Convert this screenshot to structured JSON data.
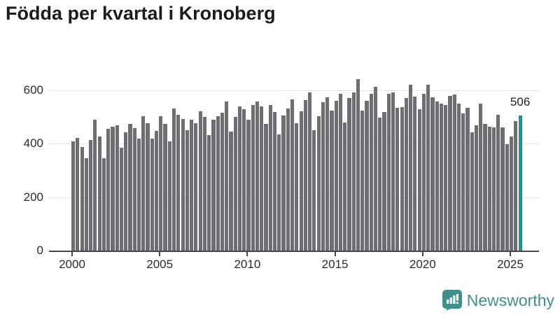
{
  "title": "Födda per kvartal i Kronoberg",
  "chart_data": {
    "type": "bar",
    "title": "Födda per kvartal i Kronoberg",
    "xlabel": "",
    "ylabel": "",
    "grid": true,
    "ylim": [
      0,
      650
    ],
    "yticks": [
      0,
      200,
      400,
      600
    ],
    "xticks": [
      "2000",
      "2005",
      "2010",
      "2015",
      "2020",
      "2025"
    ],
    "bar_color": "#6d6d72",
    "highlight_color": "#0d9b9b",
    "highlight_index": 102,
    "highlight_label": "506",
    "categories": [
      "2000 Q1",
      "2000 Q2",
      "2000 Q3",
      "2000 Q4",
      "2001 Q1",
      "2001 Q2",
      "2001 Q3",
      "2001 Q4",
      "2002 Q1",
      "2002 Q2",
      "2002 Q3",
      "2002 Q4",
      "2003 Q1",
      "2003 Q2",
      "2003 Q3",
      "2003 Q4",
      "2004 Q1",
      "2004 Q2",
      "2004 Q3",
      "2004 Q4",
      "2005 Q1",
      "2005 Q2",
      "2005 Q3",
      "2005 Q4",
      "2006 Q1",
      "2006 Q2",
      "2006 Q3",
      "2006 Q4",
      "2007 Q1",
      "2007 Q2",
      "2007 Q3",
      "2007 Q4",
      "2008 Q1",
      "2008 Q2",
      "2008 Q3",
      "2008 Q4",
      "2009 Q1",
      "2009 Q2",
      "2009 Q3",
      "2009 Q4",
      "2010 Q1",
      "2010 Q2",
      "2010 Q3",
      "2010 Q4",
      "2011 Q1",
      "2011 Q2",
      "2011 Q3",
      "2011 Q4",
      "2012 Q1",
      "2012 Q2",
      "2012 Q3",
      "2012 Q4",
      "2013 Q1",
      "2013 Q2",
      "2013 Q3",
      "2013 Q4",
      "2014 Q1",
      "2014 Q2",
      "2014 Q3",
      "2014 Q4",
      "2015 Q1",
      "2015 Q2",
      "2015 Q3",
      "2015 Q4",
      "2016 Q1",
      "2016 Q2",
      "2016 Q3",
      "2016 Q4",
      "2017 Q1",
      "2017 Q2",
      "2017 Q3",
      "2017 Q4",
      "2018 Q1",
      "2018 Q2",
      "2018 Q3",
      "2018 Q4",
      "2019 Q1",
      "2019 Q2",
      "2019 Q3",
      "2019 Q4",
      "2020 Q1",
      "2020 Q2",
      "2020 Q3",
      "2020 Q4",
      "2021 Q1",
      "2021 Q2",
      "2021 Q3",
      "2021 Q4",
      "2022 Q1",
      "2022 Q2",
      "2022 Q3",
      "2022 Q4",
      "2023 Q1",
      "2023 Q2",
      "2023 Q3",
      "2023 Q4",
      "2024 Q1",
      "2024 Q2",
      "2024 Q3",
      "2024 Q4",
      "2025 Q1",
      "2025 Q2",
      "2025 Q3"
    ],
    "values": [
      408,
      423,
      389,
      345,
      413,
      489,
      428,
      347,
      455,
      465,
      470,
      386,
      443,
      475,
      459,
      420,
      502,
      478,
      418,
      449,
      503,
      473,
      410,
      533,
      509,
      493,
      451,
      490,
      478,
      522,
      500,
      432,
      489,
      502,
      517,
      557,
      446,
      500,
      541,
      528,
      491,
      546,
      557,
      540,
      473,
      545,
      519,
      436,
      505,
      531,
      567,
      478,
      522,
      563,
      593,
      451,
      503,
      556,
      574,
      525,
      562,
      587,
      480,
      571,
      591,
      641,
      524,
      561,
      587,
      612,
      498,
      520,
      588,
      592,
      534,
      536,
      572,
      621,
      576,
      530,
      587,
      621,
      573,
      557,
      549,
      545,
      580,
      584,
      551,
      513,
      534,
      444,
      468,
      549,
      475,
      465,
      460,
      509,
      460,
      399,
      426,
      484,
      506
    ]
  },
  "branding": {
    "logo_text": "Newsworthy",
    "logo_icon": "speech-bubble-bar-chart-icon",
    "logo_color": "#3e918b"
  }
}
